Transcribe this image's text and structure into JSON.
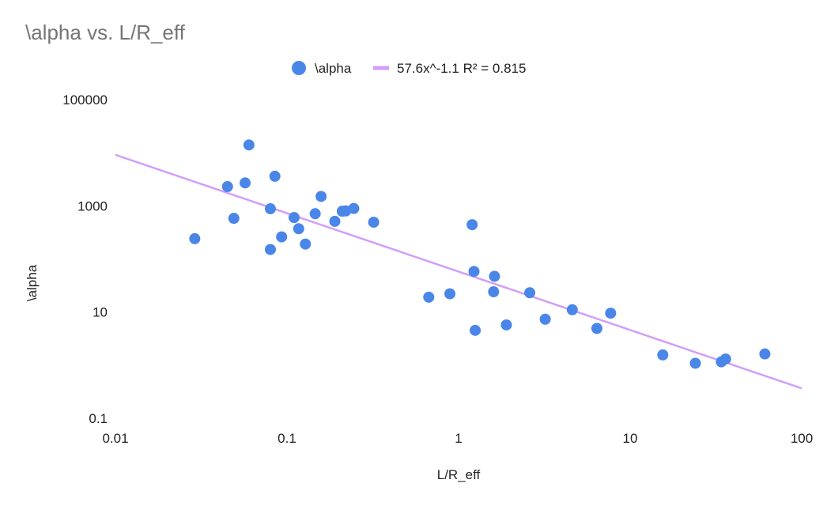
{
  "chart_data": {
    "type": "scatter",
    "title": "\\alpha vs. L/R_eff",
    "xlabel": "L/R_eff",
    "ylabel": "\\alpha",
    "xscale": "log",
    "yscale": "log",
    "xlim": [
      0.01,
      100
    ],
    "ylim": [
      0.01,
      100000
    ],
    "x_ticks": [
      {
        "value": 0.01,
        "label": "0.01"
      },
      {
        "value": 0.1,
        "label": "0.1"
      },
      {
        "value": 1,
        "label": "1"
      },
      {
        "value": 10,
        "label": "10"
      },
      {
        "value": 100,
        "label": "100"
      }
    ],
    "y_ticks": [
      {
        "value": 0.1,
        "label": "0.1"
      },
      {
        "value": 10,
        "label": "10"
      },
      {
        "value": 1000,
        "label": "1000"
      },
      {
        "value": 100000,
        "label": "100000"
      }
    ],
    "grid": false,
    "legend_position": "top-center",
    "colors": {
      "points": "#4a86e8",
      "trendline": "#d29dfa",
      "title": "#757575",
      "text": "#222222"
    },
    "series": [
      {
        "name": "\\alpha",
        "points": [
          [
            0.029,
            240
          ],
          [
            0.045,
            2300
          ],
          [
            0.049,
            580
          ],
          [
            0.057,
            2700
          ],
          [
            0.06,
            14000
          ],
          [
            0.08,
            150
          ],
          [
            0.08,
            880
          ],
          [
            0.085,
            3600
          ],
          [
            0.093,
            260
          ],
          [
            0.11,
            600
          ],
          [
            0.117,
            370
          ],
          [
            0.128,
            190
          ],
          [
            0.146,
            710
          ],
          [
            0.158,
            1500
          ],
          [
            0.19,
            510
          ],
          [
            0.21,
            790
          ],
          [
            0.22,
            800
          ],
          [
            0.245,
            890
          ],
          [
            0.32,
            490
          ],
          [
            0.67,
            19
          ],
          [
            0.89,
            22
          ],
          [
            1.2,
            440
          ],
          [
            1.23,
            58
          ],
          [
            1.25,
            4.5
          ],
          [
            1.6,
            24
          ],
          [
            1.62,
            47
          ],
          [
            1.9,
            5.7
          ],
          [
            2.6,
            23
          ],
          [
            3.2,
            7.3
          ],
          [
            4.6,
            11
          ],
          [
            6.4,
            4.9
          ],
          [
            7.7,
            9.5
          ],
          [
            15.5,
            1.55
          ],
          [
            24,
            1.08
          ],
          [
            34,
            1.15
          ],
          [
            36,
            1.3
          ],
          [
            61,
            1.62
          ]
        ]
      }
    ],
    "trendline": {
      "name": "57.6x^-1.1 R² = 0.815",
      "coefficient": 57.6,
      "exponent": -1.1,
      "x_range": [
        0.01,
        100
      ]
    }
  }
}
